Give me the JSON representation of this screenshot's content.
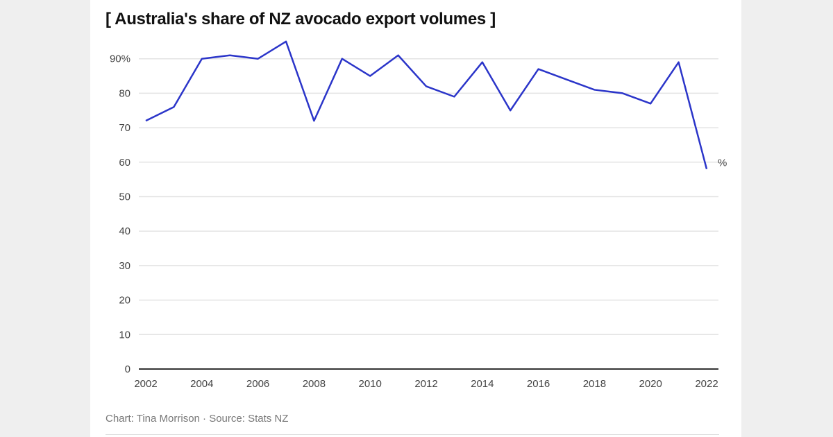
{
  "chart_data": {
    "type": "line",
    "title": "[ Australia's share of NZ avocado export volumes ]",
    "x": [
      2002,
      2003,
      2004,
      2005,
      2006,
      2007,
      2008,
      2009,
      2010,
      2011,
      2012,
      2013,
      2014,
      2015,
      2016,
      2017,
      2018,
      2019,
      2020,
      2021,
      2022
    ],
    "values": [
      72,
      76,
      90,
      91,
      90,
      95,
      72,
      90,
      85,
      91,
      82,
      79,
      89,
      75,
      87,
      84,
      81,
      80,
      77,
      89,
      58
    ],
    "unit_label": "%",
    "ylim": [
      0,
      95
    ],
    "yticks": [
      0,
      10,
      20,
      30,
      40,
      50,
      60,
      70,
      80,
      90
    ],
    "ytick_labels": [
      "0",
      "10",
      "20",
      "30",
      "40",
      "50",
      "60",
      "70",
      "80",
      "90%"
    ],
    "xticks": [
      2002,
      2004,
      2006,
      2008,
      2010,
      2012,
      2014,
      2016,
      2018,
      2020,
      2022
    ],
    "grid": true,
    "line_color": "#2b35c9",
    "credit": "Chart: Tina Morrison · Source: Stats NZ"
  }
}
